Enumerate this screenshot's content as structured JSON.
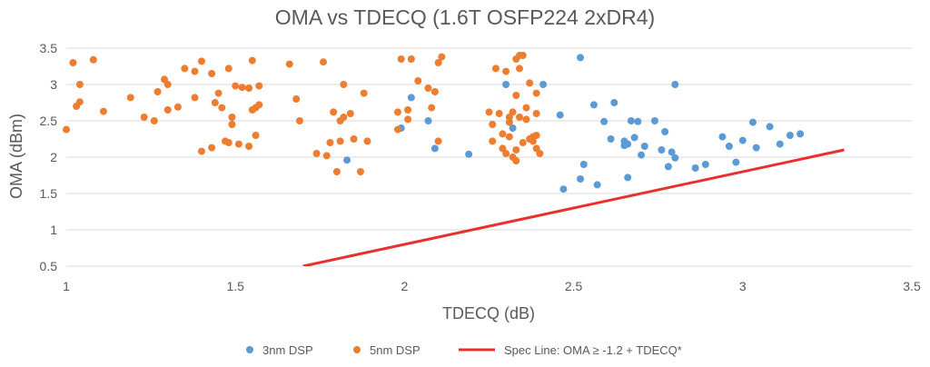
{
  "chart_data": {
    "type": "scatter",
    "title": "OMA vs TDECQ (1.6T OSFP224 2xDR4)",
    "xlabel": "TDECQ (dB)",
    "ylabel": "OMA (dBm)",
    "xlim": [
      1,
      3.5
    ],
    "ylim": [
      0.5,
      3.5
    ],
    "x_ticks": [
      1,
      1.5,
      2,
      2.5,
      3,
      3.5
    ],
    "y_ticks": [
      0.5,
      1,
      1.5,
      2,
      2.5,
      3,
      3.5
    ],
    "grid": "horizontal",
    "legend_position": "bottom",
    "colors": {
      "blue": "#5b9bd5",
      "orange": "#ed7d31",
      "red": "#e8312f"
    },
    "series": [
      {
        "name": "3nm DSP",
        "kind": "scatter",
        "color": "#5b9bd5",
        "points": [
          [
            1.83,
            1.96
          ],
          [
            1.99,
            2.4
          ],
          [
            2.02,
            2.82
          ],
          [
            2.07,
            2.5
          ],
          [
            2.09,
            2.12
          ],
          [
            2.19,
            2.04
          ],
          [
            2.3,
            3.0
          ],
          [
            2.32,
            2.4
          ],
          [
            2.41,
            3.0
          ],
          [
            2.47,
            1.56
          ],
          [
            2.46,
            2.58
          ],
          [
            2.52,
            3.37
          ],
          [
            2.52,
            1.7
          ],
          [
            2.53,
            1.9
          ],
          [
            2.56,
            2.72
          ],
          [
            2.57,
            1.62
          ],
          [
            2.59,
            2.49
          ],
          [
            2.61,
            2.25
          ],
          [
            2.62,
            2.75
          ],
          [
            2.65,
            2.22
          ],
          [
            2.65,
            2.16
          ],
          [
            2.66,
            2.18
          ],
          [
            2.66,
            1.72
          ],
          [
            2.67,
            2.5
          ],
          [
            2.68,
            2.27
          ],
          [
            2.69,
            2.49
          ],
          [
            2.7,
            2.03
          ],
          [
            2.71,
            2.15
          ],
          [
            2.74,
            2.5
          ],
          [
            2.76,
            2.1
          ],
          [
            2.77,
            2.35
          ],
          [
            2.78,
            1.87
          ],
          [
            2.79,
            2.07
          ],
          [
            2.8,
            3.0
          ],
          [
            2.8,
            1.99
          ],
          [
            2.86,
            1.85
          ],
          [
            2.89,
            1.9
          ],
          [
            2.94,
            2.28
          ],
          [
            2.96,
            2.15
          ],
          [
            2.98,
            1.93
          ],
          [
            3.0,
            2.23
          ],
          [
            3.03,
            2.48
          ],
          [
            3.04,
            2.13
          ],
          [
            3.08,
            2.42
          ],
          [
            3.11,
            2.18
          ],
          [
            3.14,
            2.3
          ],
          [
            3.17,
            2.32
          ]
        ]
      },
      {
        "name": "5nm DSP",
        "kind": "scatter",
        "color": "#ed7d31",
        "points": [
          [
            1.0,
            2.38
          ],
          [
            1.02,
            3.3
          ],
          [
            1.03,
            2.7
          ],
          [
            1.04,
            2.76
          ],
          [
            1.04,
            3.0
          ],
          [
            1.08,
            3.34
          ],
          [
            1.11,
            2.63
          ],
          [
            1.19,
            2.82
          ],
          [
            1.23,
            2.55
          ],
          [
            1.26,
            2.5
          ],
          [
            1.27,
            2.9
          ],
          [
            1.29,
            3.07
          ],
          [
            1.3,
            3.0
          ],
          [
            1.3,
            2.65
          ],
          [
            1.33,
            2.69
          ],
          [
            1.35,
            3.22
          ],
          [
            1.38,
            3.18
          ],
          [
            1.38,
            2.82
          ],
          [
            1.4,
            3.32
          ],
          [
            1.4,
            2.08
          ],
          [
            1.43,
            3.15
          ],
          [
            1.43,
            2.13
          ],
          [
            1.44,
            2.75
          ],
          [
            1.45,
            2.88
          ],
          [
            1.46,
            2.68
          ],
          [
            1.47,
            2.22
          ],
          [
            1.48,
            3.22
          ],
          [
            1.48,
            2.2
          ],
          [
            1.49,
            2.55
          ],
          [
            1.49,
            2.45
          ],
          [
            1.5,
            2.98
          ],
          [
            1.51,
            2.18
          ],
          [
            1.52,
            2.96
          ],
          [
            1.54,
            2.95
          ],
          [
            1.54,
            2.15
          ],
          [
            1.55,
            3.33
          ],
          [
            1.55,
            2.65
          ],
          [
            1.56,
            2.68
          ],
          [
            1.56,
            2.3
          ],
          [
            1.57,
            2.98
          ],
          [
            1.57,
            2.72
          ],
          [
            1.66,
            3.28
          ],
          [
            1.68,
            2.8
          ],
          [
            1.69,
            2.5
          ],
          [
            1.74,
            2.05
          ],
          [
            1.76,
            3.31
          ],
          [
            1.77,
            2.02
          ],
          [
            1.78,
            2.2
          ],
          [
            1.79,
            2.62
          ],
          [
            1.8,
            1.8
          ],
          [
            1.81,
            2.22
          ],
          [
            1.81,
            2.5
          ],
          [
            1.82,
            2.55
          ],
          [
            1.82,
            3.0
          ],
          [
            1.84,
            2.6
          ],
          [
            1.85,
            2.25
          ],
          [
            1.87,
            1.8
          ],
          [
            1.88,
            2.88
          ],
          [
            1.89,
            2.22
          ],
          [
            1.98,
            2.62
          ],
          [
            1.98,
            2.38
          ],
          [
            1.99,
            3.35
          ],
          [
            2.01,
            2.65
          ],
          [
            2.01,
            2.52
          ],
          [
            2.02,
            3.35
          ],
          [
            2.04,
            3.05
          ],
          [
            2.07,
            2.95
          ],
          [
            2.08,
            2.68
          ],
          [
            2.09,
            2.9
          ],
          [
            2.1,
            3.3
          ],
          [
            2.1,
            2.22
          ],
          [
            2.11,
            3.38
          ],
          [
            2.25,
            2.62
          ],
          [
            2.26,
            2.22
          ],
          [
            2.26,
            2.45
          ],
          [
            2.27,
            3.22
          ],
          [
            2.28,
            2.6
          ],
          [
            2.29,
            2.32
          ],
          [
            2.29,
            2.12
          ],
          [
            2.3,
            2.05
          ],
          [
            2.3,
            3.18
          ],
          [
            2.31,
            2.55
          ],
          [
            2.31,
            2.48
          ],
          [
            2.31,
            2.28
          ],
          [
            2.32,
            2.62
          ],
          [
            2.32,
            2.0
          ],
          [
            2.33,
            3.35
          ],
          [
            2.33,
            2.85
          ],
          [
            2.33,
            2.1
          ],
          [
            2.33,
            1.95
          ],
          [
            2.34,
            3.4
          ],
          [
            2.34,
            3.22
          ],
          [
            2.34,
            2.55
          ],
          [
            2.35,
            3.4
          ],
          [
            2.35,
            2.2
          ],
          [
            2.36,
            2.68
          ],
          [
            2.36,
            2.52
          ],
          [
            2.37,
            3.02
          ],
          [
            2.37,
            2.25
          ],
          [
            2.38,
            2.28
          ],
          [
            2.38,
            2.22
          ],
          [
            2.39,
            2.88
          ],
          [
            2.39,
            2.6
          ],
          [
            2.39,
            2.3
          ],
          [
            2.39,
            2.12
          ],
          [
            2.4,
            2.05
          ]
        ]
      },
      {
        "name": "Spec Line: OMA ≥ -1.2 + TDECQ*",
        "kind": "line",
        "color": "#e8312f",
        "x": [
          1.7,
          3.3
        ],
        "y": [
          0.5,
          2.1
        ]
      }
    ]
  }
}
